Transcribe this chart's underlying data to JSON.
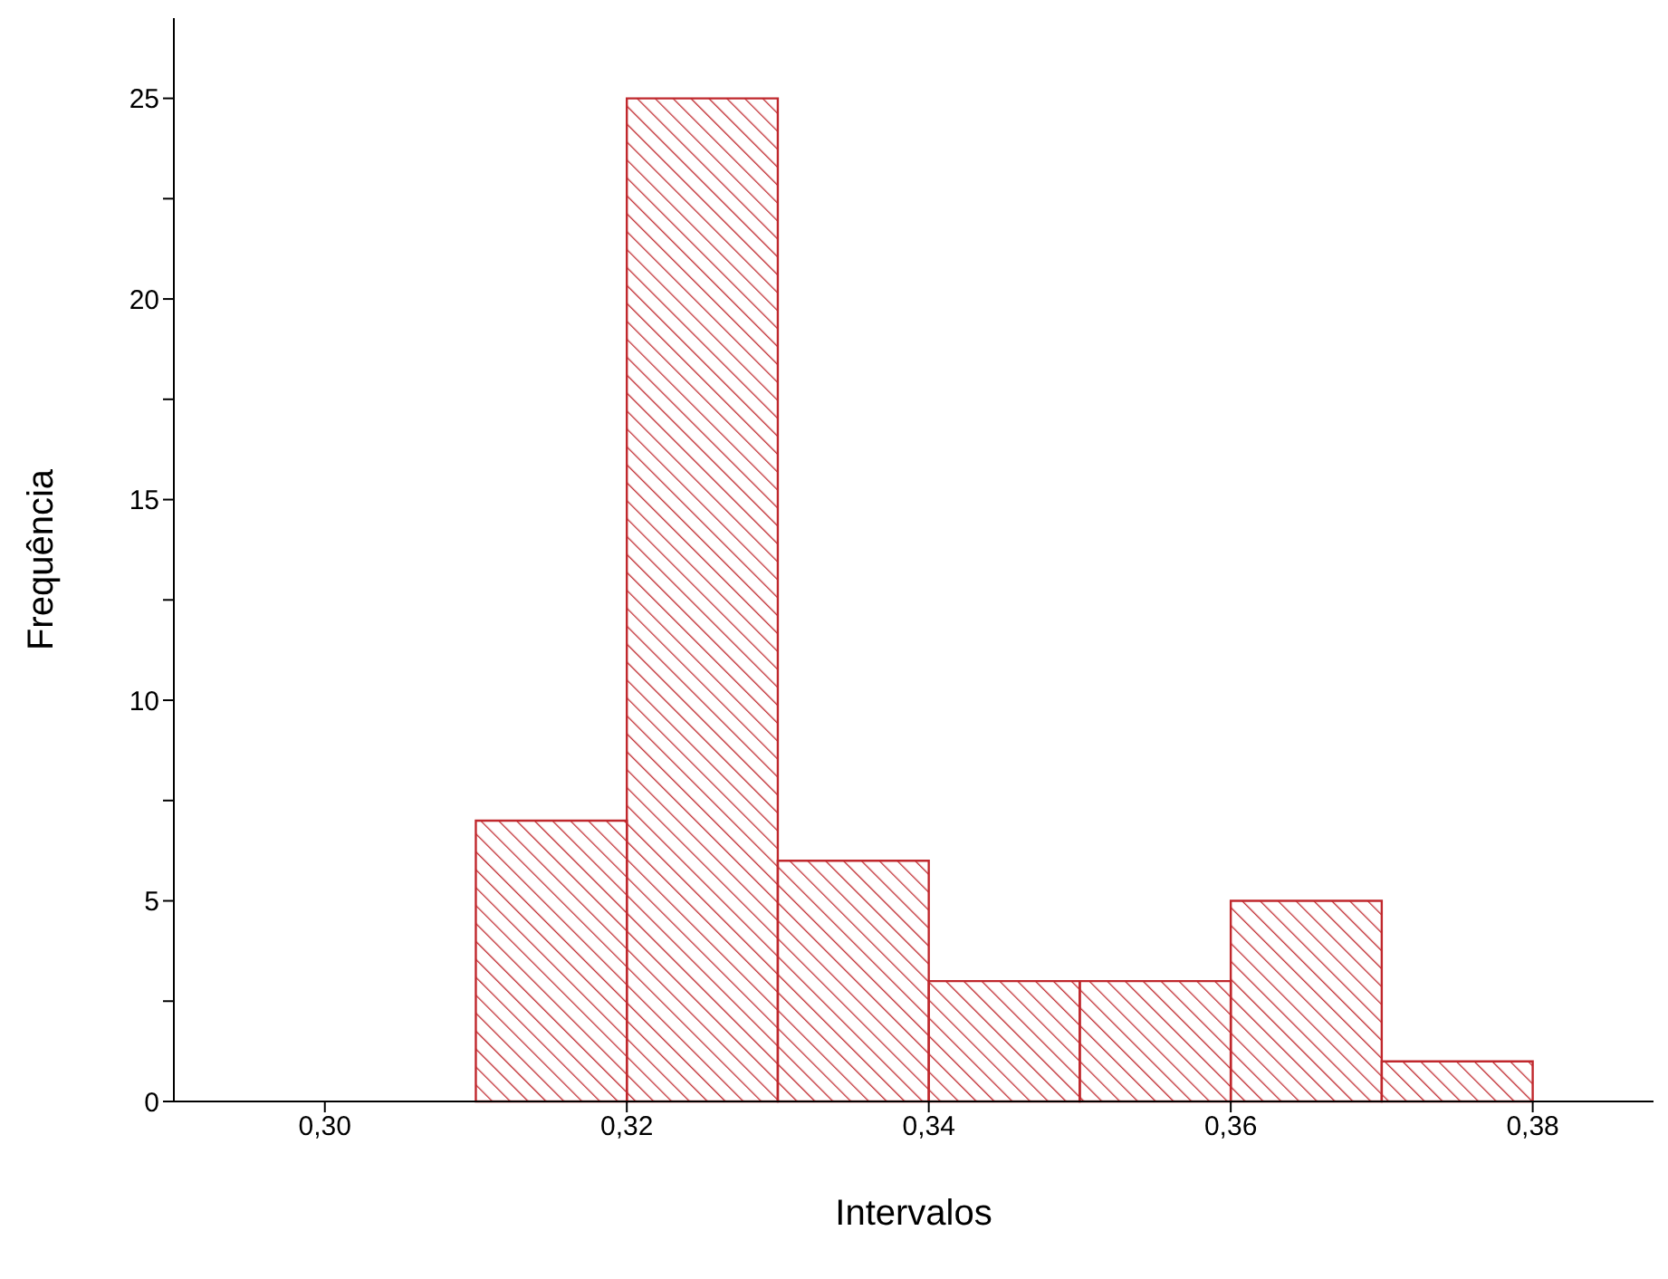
{
  "chart_data": {
    "type": "histogram",
    "xlabel": "Intervalos",
    "ylabel": "Frequência",
    "bins": [
      0.31,
      0.32,
      0.33,
      0.34,
      0.35,
      0.36,
      0.37,
      0.38
    ],
    "values": [
      7,
      25,
      6,
      3,
      3,
      5,
      1
    ],
    "color": "#c0282d",
    "xlim": [
      0.29,
      0.388
    ],
    "xticks": [
      {
        "value": 0.3,
        "label": "0,30"
      },
      {
        "value": 0.32,
        "label": "0,32"
      },
      {
        "value": 0.34,
        "label": "0,34"
      },
      {
        "value": 0.36,
        "label": "0,36"
      },
      {
        "value": 0.38,
        "label": "0,38"
      }
    ],
    "ylim": [
      0,
      27
    ],
    "yticks": [
      0,
      {
        "value": 2.5,
        "label": null
      },
      5,
      {
        "value": 7.5,
        "label": null
      },
      10,
      {
        "value": 12.5,
        "label": null
      },
      15,
      {
        "value": 17.5,
        "label": null
      },
      20,
      {
        "value": 22.5,
        "label": null
      },
      25
    ],
    "grid": false
  }
}
